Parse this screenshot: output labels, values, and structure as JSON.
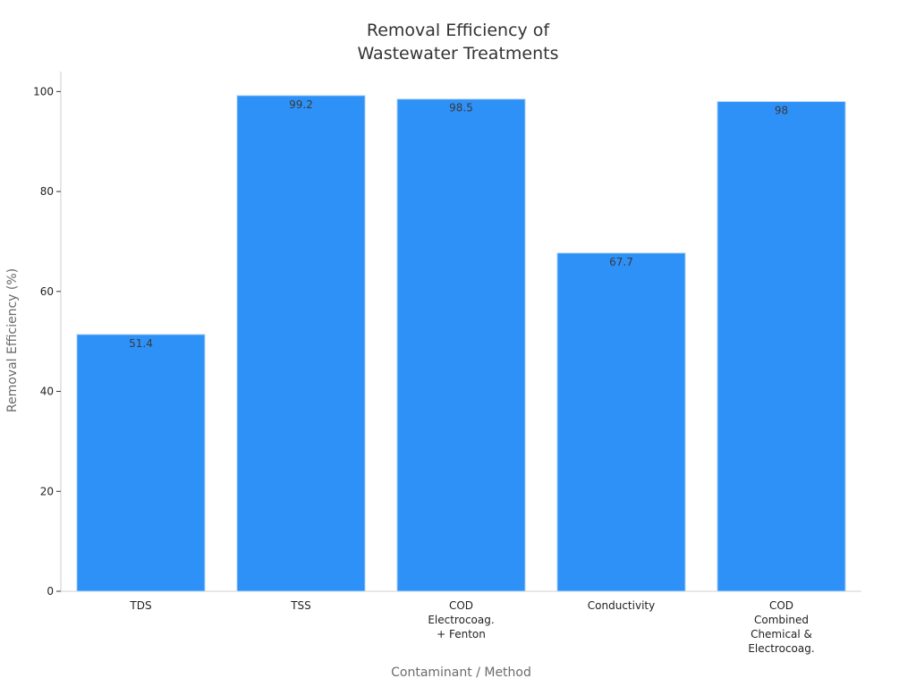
{
  "chart_data": {
    "type": "bar",
    "title": [
      "Removal Efficiency of",
      "Wastewater Treatments"
    ],
    "xlabel": "Contaminant / Method",
    "ylabel": "Removal Efficiency (%)",
    "categories": [
      [
        "TDS"
      ],
      [
        "TSS"
      ],
      [
        "COD",
        "Electrocoag.",
        "+ Fenton"
      ],
      [
        "Conductivity"
      ],
      [
        "COD",
        "Combined",
        "Chemical &",
        "Electrocoag."
      ]
    ],
    "values": [
      51.4,
      99.2,
      98.5,
      67.7,
      98
    ],
    "value_labels": [
      "51.4",
      "99.2",
      "98.5",
      "67.7",
      "98"
    ],
    "ylim": [
      0,
      104
    ],
    "yticks": [
      0,
      20,
      40,
      60,
      80,
      100
    ],
    "grid": false,
    "bar_color": "#2e91f8",
    "bar_edge_color": "#bcd8f5",
    "axis_color": "#cfcfcf",
    "tick_color": "#333333",
    "title_color": "#333333",
    "value_label_color": "#3a3a3a"
  }
}
